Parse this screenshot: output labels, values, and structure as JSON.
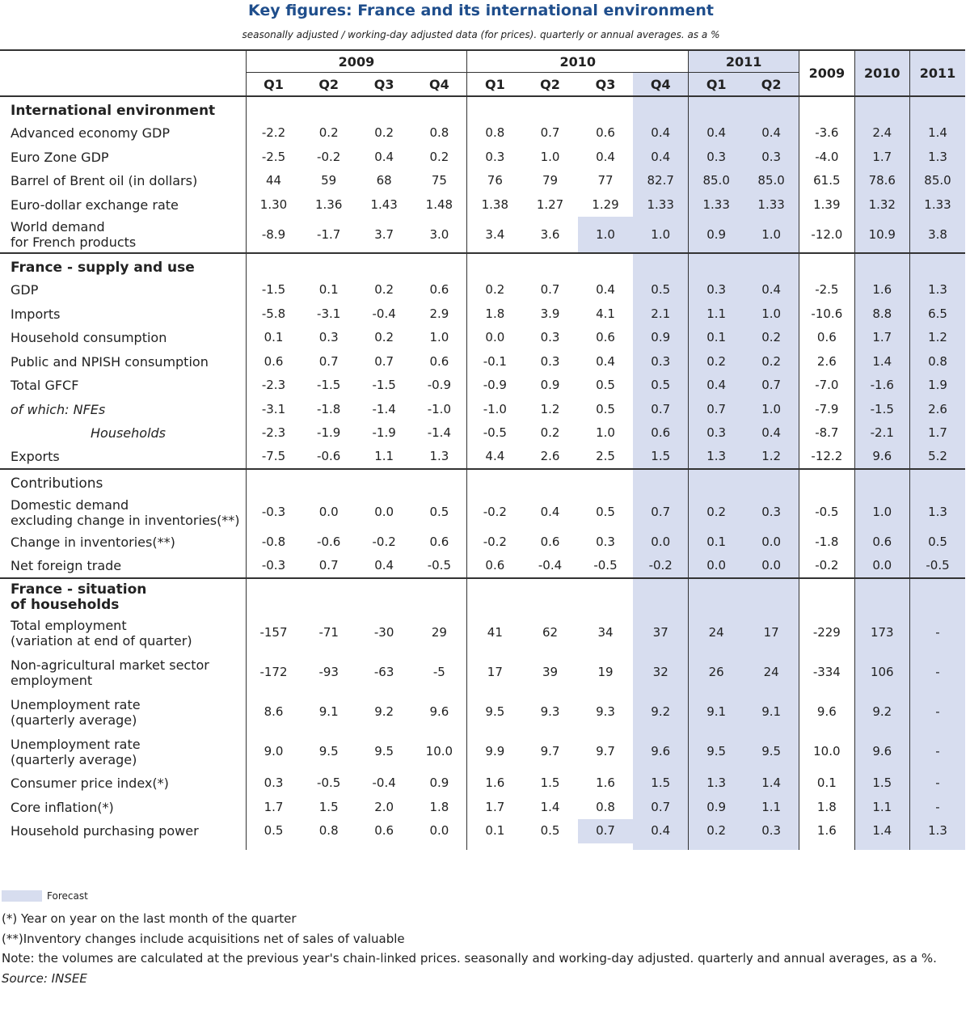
{
  "header": {
    "title": "Key figures: France and its international environment",
    "subtitle": "seasonally adjusted / working-day adjusted data (for prices). quarterly or annual averages. as a %"
  },
  "table": {
    "years": [
      "2009",
      "2010",
      "2011"
    ],
    "quarters": [
      "Q1",
      "Q2",
      "Q3",
      "Q4",
      "Q1",
      "Q2",
      "Q3",
      "Q4",
      "Q1",
      "Q2"
    ],
    "annual": [
      "2009",
      "2010",
      "2011"
    ],
    "sections": [
      {
        "title": "International environment",
        "rows": [
          {
            "label": "Advanced economy GDP",
            "values": [
              "-2.2",
              "0.2",
              "0.2",
              "0.8",
              "0.8",
              "0.7",
              "0.6",
              "0.4",
              "0.4",
              "0.4",
              "-3.6",
              "2.4",
              "1.4"
            ]
          },
          {
            "label": "Euro Zone GDP",
            "values": [
              "-2.5",
              "-0.2",
              "0.4",
              "0.2",
              "0.3",
              "1.0",
              "0.4",
              "0.4",
              "0.3",
              "0.3",
              "-4.0",
              "1.7",
              "1.3"
            ]
          },
          {
            "label": "Barrel of Brent oil (in dollars)",
            "values": [
              "44",
              "59",
              "68",
              "75",
              "76",
              "79",
              "77",
              "82.7",
              "85.0",
              "85.0",
              "61.5",
              "78.6",
              "85.0"
            ]
          },
          {
            "label": "Euro-dollar exchange rate",
            "values": [
              "1.30",
              "1.36",
              "1.43",
              "1.48",
              "1.38",
              "1.27",
              "1.29",
              "1.33",
              "1.33",
              "1.33",
              "1.39",
              "1.32",
              "1.33"
            ]
          },
          {
            "label": "World demand\nfor French products",
            "values": [
              "-8.9",
              "-1.7",
              "3.7",
              "3.0",
              "3.4",
              "3.6",
              "1.0",
              "1.0",
              "0.9",
              "1.0",
              "-12.0",
              "10.9",
              "3.8"
            ]
          }
        ]
      },
      {
        "title": "France - supply and use",
        "rows": [
          {
            "label": "GDP",
            "values": [
              "-1.5",
              "0.1",
              "0.2",
              "0.6",
              "0.2",
              "0.7",
              "0.4",
              "0.5",
              "0.3",
              "0.4",
              "-2.5",
              "1.6",
              "1.3"
            ]
          },
          {
            "label": "Imports",
            "values": [
              "-5.8",
              "-3.1",
              "-0.4",
              "2.9",
              "1.8",
              "3.9",
              "4.1",
              "2.1",
              "1.1",
              "1.0",
              "-10.6",
              "8.8",
              "6.5"
            ]
          },
          {
            "label": "Household consumption",
            "values": [
              "0.1",
              "0.3",
              "0.2",
              "1.0",
              "0.0",
              "0.3",
              "0.6",
              "0.9",
              "0.1",
              "0.2",
              "0.6",
              "1.7",
              "1.2"
            ]
          },
          {
            "label": "Public and NPISH consumption",
            "values": [
              "0.6",
              "0.7",
              "0.7",
              "0.6",
              "-0.1",
              "0.3",
              "0.4",
              "0.3",
              "0.2",
              "0.2",
              "2.6",
              "1.4",
              "0.8"
            ]
          },
          {
            "label": "Total GFCF",
            "values": [
              "-2.3",
              "-1.5",
              "-1.5",
              "-0.9",
              "-0.9",
              "0.9",
              "0.5",
              "0.5",
              "0.4",
              "0.7",
              "-7.0",
              "-1.6",
              "1.9"
            ]
          },
          {
            "label": "of which:  NFEs",
            "values": [
              "-3.1",
              "-1.8",
              "-1.4",
              "-1.0",
              "-1.0",
              "1.2",
              "0.5",
              "0.7",
              "0.7",
              "1.0",
              "-7.9",
              "-1.5",
              "2.6"
            ]
          },
          {
            "label": "Households",
            "values": [
              "-2.3",
              "-1.9",
              "-1.9",
              "-1.4",
              "-0.5",
              "0.2",
              "1.0",
              "0.6",
              "0.3",
              "0.4",
              "-8.7",
              "-2.1",
              "1.7"
            ]
          },
          {
            "label": "Exports",
            "values": [
              "-7.5",
              "-0.6",
              "1.1",
              "1.3",
              "4.4",
              "2.6",
              "2.5",
              "1.5",
              "1.3",
              "1.2",
              "-12.2",
              "9.6",
              "5.2"
            ]
          }
        ]
      },
      {
        "title": "Contributions",
        "rows": [
          {
            "label": "Domestic demand\nexcluding change in inventories(**)",
            "values": [
              "-0.3",
              "0.0",
              "0.0",
              "0.5",
              "-0.2",
              "0.4",
              "0.5",
              "0.7",
              "0.2",
              "0.3",
              "-0.5",
              "1.0",
              "1.3"
            ]
          },
          {
            "label": "Change in inventories(**)",
            "values": [
              "-0.8",
              "-0.6",
              "-0.2",
              "0.6",
              "-0.2",
              "0.6",
              "0.3",
              "0.0",
              "0.1",
              "0.0",
              "-1.8",
              "0.6",
              "0.5"
            ]
          },
          {
            "label": "Net foreign trade",
            "values": [
              "-0.3",
              "0.7",
              "0.4",
              "-0.5",
              "0.6",
              "-0.4",
              "-0.5",
              "-0.2",
              "0.0",
              "0.0",
              "-0.2",
              "0.0",
              "-0.5"
            ]
          }
        ]
      },
      {
        "title": "France - situation\nof households",
        "rows": [
          {
            "label": "Total employment\n(variation at end of quarter)",
            "values": [
              "-157",
              "-71",
              "-30",
              "29",
              "41",
              "62",
              "34",
              "37",
              "24",
              "17",
              "-229",
              "173",
              "-"
            ]
          },
          {
            "label": "Non-agricultural market sector\nemployment",
            "values": [
              "-172",
              "-93",
              "-63",
              "-5",
              "17",
              "39",
              "19",
              "32",
              "26",
              "24",
              "-334",
              "106",
              "-"
            ]
          },
          {
            "label": "Unemployment rate\n(quarterly average)",
            "values": [
              "8.6",
              "9.1",
              "9.2",
              "9.6",
              "9.5",
              "9.3",
              "9.3",
              "9.2",
              "9.1",
              "9.1",
              "9.6",
              "9.2",
              "-"
            ]
          },
          {
            "label": "Unemployment rate\n(quarterly average)",
            "values": [
              "9.0",
              "9.5",
              "9.5",
              "10.0",
              "9.9",
              "9.7",
              "9.7",
              "9.6",
              "9.5",
              "9.5",
              "10.0",
              "9.6",
              "-"
            ]
          },
          {
            "label": "Consumer price index(*)",
            "values": [
              "0.3",
              "-0.5",
              "-0.4",
              "0.9",
              "1.6",
              "1.5",
              "1.6",
              "1.5",
              "1.3",
              "1.4",
              "0.1",
              "1.5",
              "-"
            ]
          },
          {
            "label": "Core inflation(*)",
            "values": [
              "1.7",
              "1.5",
              "2.0",
              "1.8",
              "1.7",
              "1.4",
              "0.8",
              "0.7",
              "0.9",
              "1.1",
              "1.8",
              "1.1",
              "-"
            ]
          },
          {
            "label": "Household purchasing power",
            "values": [
              "0.5",
              "0.8",
              "0.6",
              "0.0",
              "0.1",
              "0.5",
              "0.7",
              "0.4",
              "0.2",
              "0.3",
              "1.6",
              "1.4",
              "1.3"
            ]
          }
        ]
      }
    ]
  },
  "footer": {
    "legend": "Forecast",
    "notes": [
      "(*) Year on year on the last month of the quarter",
      "(**)Inventory changes include acquisitions net of sales of valuable",
      "Note: the volumes are calculated at the previous year's chain-linked prices. seasonally and working-day adjusted. quarterly and annual averages, as a %.",
      "Source: INSEE"
    ]
  }
}
